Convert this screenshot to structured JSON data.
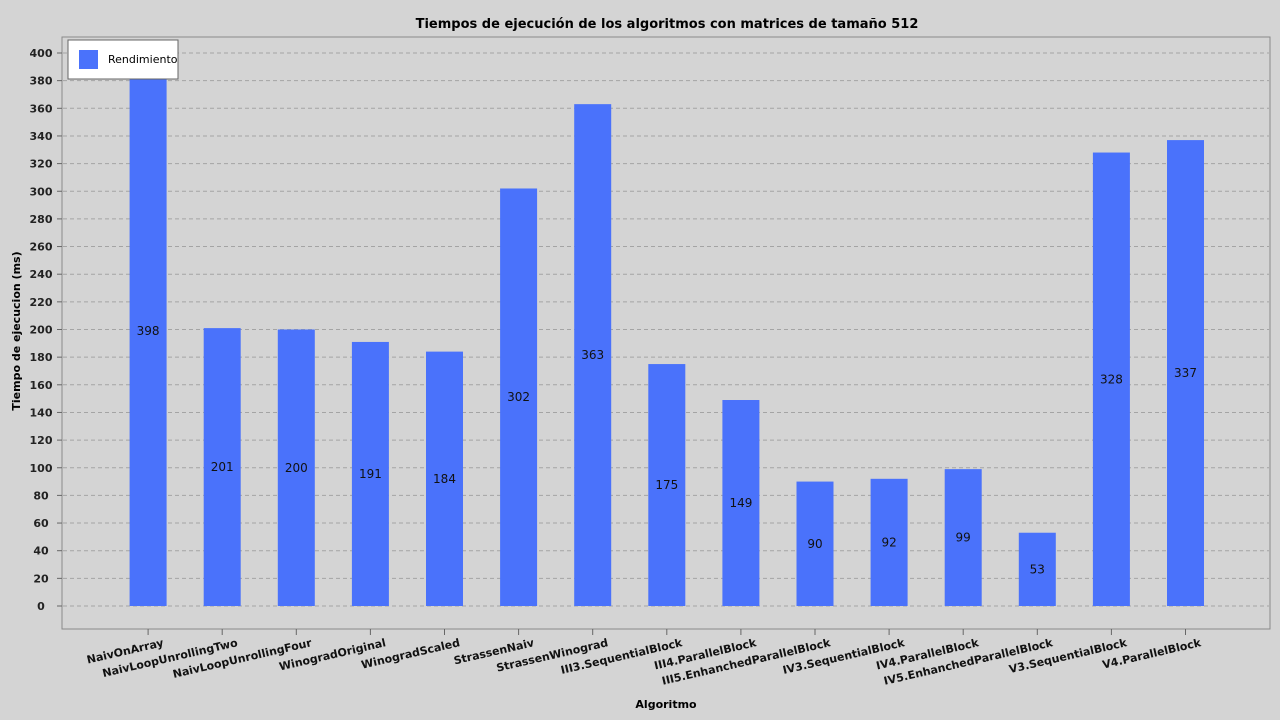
{
  "chart_data": {
    "type": "bar",
    "title": "Tiempos de ejecución de los algoritmos con matrices de tamaño 512",
    "xlabel": "Algoritmo",
    "ylabel": "Tiempo de ejecucion (ms)",
    "categories": [
      "NaivOnArray",
      "NaivLoopUnrollingTwo",
      "NaivLoopUnrollingFour",
      "WinogradOriginal",
      "WinogradScaled",
      "StrassenNaiv",
      "StrassenWinograd",
      "III3.SequentialBlock",
      "III4.ParallelBlock",
      "III5.EnhanchedParallelBlock",
      "IV3.SequentialBlock",
      "IV4.ParallelBlock",
      "IV5.EnhanchedParallelBlock",
      "V3.SequentialBlock",
      "V4.ParallelBlock"
    ],
    "series": [
      {
        "name": "Rendimiento",
        "color": "#4a72fb",
        "values": [
          398,
          201,
          200,
          191,
          184,
          302,
          363,
          175,
          149,
          90,
          92,
          99,
          53,
          328,
          337
        ]
      }
    ],
    "ylim": [
      0,
      400
    ],
    "yticks": [
      0,
      20,
      40,
      60,
      80,
      100,
      120,
      140,
      160,
      180,
      200,
      220,
      240,
      260,
      280,
      300,
      320,
      340,
      360,
      380,
      400
    ],
    "grid": true,
    "legend_position": "top-left"
  }
}
